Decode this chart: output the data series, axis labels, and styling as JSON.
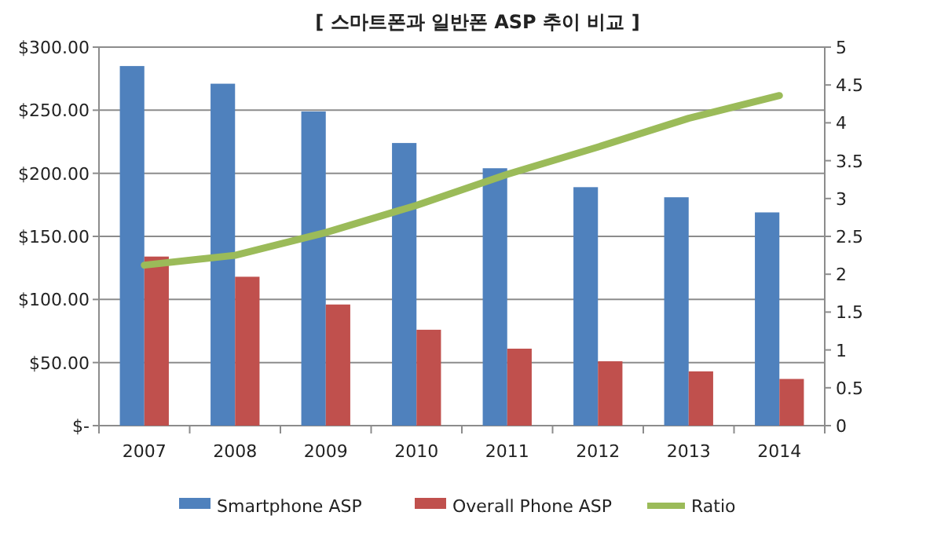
{
  "chart_data": {
    "type": "bar",
    "title": "[ 스마트폰과 일반폰 ASP 추이 비교 ]",
    "categories": [
      "2007",
      "2008",
      "2009",
      "2010",
      "2011",
      "2012",
      "2013",
      "2014"
    ],
    "series": [
      {
        "name": "Smartphone ASP",
        "color": "#4f81bd",
        "values": [
          285,
          271,
          249,
          224,
          204,
          189,
          181,
          169
        ]
      },
      {
        "name": "Overall Phone ASP",
        "color": "#c0504d",
        "values": [
          134,
          118,
          96,
          76,
          61,
          51,
          43,
          37
        ]
      },
      {
        "name": "Ratio",
        "type": "line",
        "axis": "y2",
        "color": "#9bbb59",
        "values": [
          2.12,
          2.25,
          2.55,
          2.91,
          3.32,
          3.68,
          4.06,
          4.36
        ]
      }
    ],
    "ylim": [
      0,
      300
    ],
    "yticks": [
      {
        "value": 0,
        "label": "$-"
      },
      {
        "value": 50,
        "label": "$50.00"
      },
      {
        "value": 100,
        "label": "$100.00"
      },
      {
        "value": 150,
        "label": "$150.00"
      },
      {
        "value": 200,
        "label": "$200.00"
      },
      {
        "value": 250,
        "label": "$250.00"
      },
      {
        "value": 300,
        "label": "$300.00"
      }
    ],
    "y2lim": [
      0,
      5
    ],
    "y2ticks": [
      0,
      0.5,
      1,
      1.5,
      2,
      2.5,
      3,
      3.5,
      4,
      4.5,
      5
    ],
    "grid": "y",
    "legend": "bottom",
    "marker": "none"
  }
}
